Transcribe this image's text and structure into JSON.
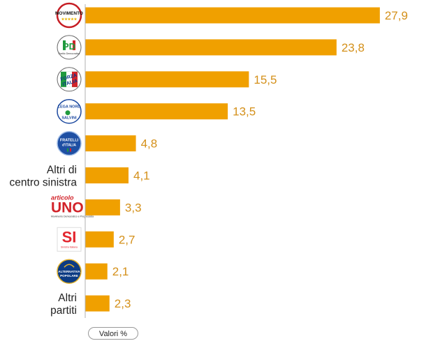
{
  "chart_data": {
    "type": "bar",
    "orientation": "horizontal",
    "categories": [
      {
        "kind": "logo",
        "logo": "movimento-5-stelle-logo",
        "logo_text": [
          "MOVIMENTO",
          "★★★★★"
        ]
      },
      {
        "kind": "logo",
        "logo": "partito-democratico-logo",
        "logo_text": [
          "PD",
          "Partito Democratico"
        ]
      },
      {
        "kind": "logo",
        "logo": "forza-italia-logo",
        "logo_text": [
          "FORZA",
          "ITALIA"
        ]
      },
      {
        "kind": "logo",
        "logo": "lega-nord-salvini-logo",
        "logo_text": [
          "LEGA NORD",
          "SALVINI"
        ]
      },
      {
        "kind": "logo",
        "logo": "fratelli-d-italia-logo",
        "logo_text": [
          "FRATELLI",
          "d'ITALIA"
        ]
      },
      {
        "kind": "text",
        "label": [
          "Altri di",
          "centro sinistra"
        ]
      },
      {
        "kind": "logo",
        "logo": "articolo-uno-logo",
        "logo_text": [
          "articolo",
          "UNO",
          "Movimento Democratico e Progressista"
        ]
      },
      {
        "kind": "logo",
        "logo": "sinistra-italiana-logo",
        "logo_text": [
          "SI",
          "Sinistra Italiana"
        ]
      },
      {
        "kind": "logo",
        "logo": "alternativa-popolare-logo",
        "logo_text": [
          "ALTERNATIVA",
          "POPOLARE"
        ]
      },
      {
        "kind": "text",
        "label": [
          "Altri",
          "partiti"
        ]
      }
    ],
    "values": [
      27.9,
      23.8,
      15.5,
      13.5,
      4.8,
      4.1,
      3.3,
      2.7,
      2.1,
      2.3
    ],
    "value_labels": [
      "27,9",
      "23,8",
      "15,5",
      "13,5",
      "4,8",
      "4,1",
      "3,3",
      "2,7",
      "2,1",
      "2,3"
    ],
    "unit_label": "Valori %",
    "xlim": [
      0,
      30
    ],
    "bar_color": "#F0A000",
    "label_color": "#D4901A",
    "grid": false,
    "legend": "none"
  }
}
